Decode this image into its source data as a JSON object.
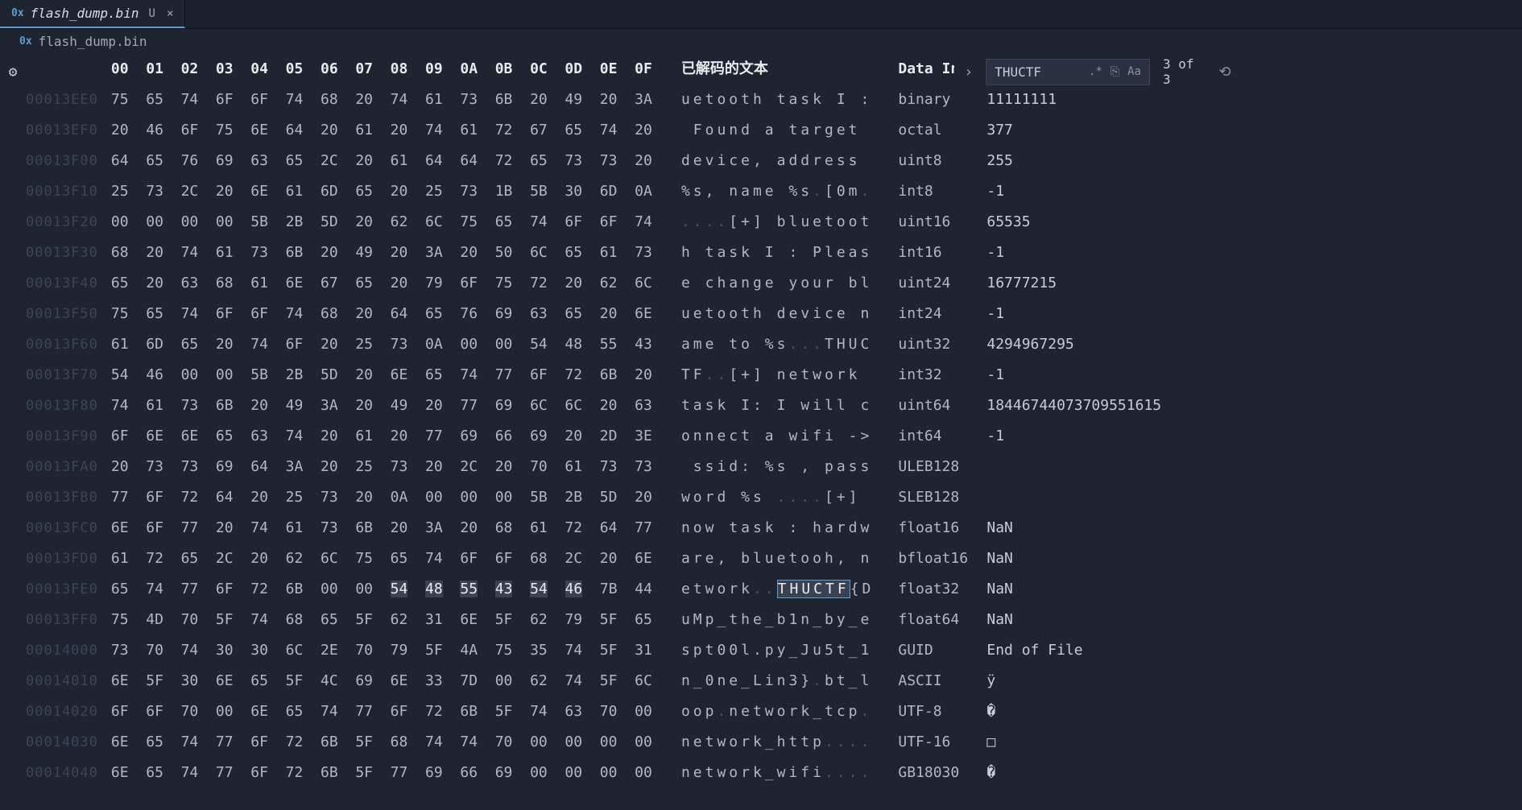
{
  "tab": {
    "icon": "0x",
    "name": "flash_dump.bin",
    "mod": "U",
    "close": "×"
  },
  "breadcrumb": {
    "icon": "0x",
    "name": "flash_dump.bin"
  },
  "gear_icon": "⚙",
  "hex": {
    "col_hdr": "00  01  02  03  04  05  06  07  08  09  0A  0B  0C  0D  0E  0F",
    "addrs": [
      "00013EE0",
      "00013EF0",
      "00013F00",
      "00013F10",
      "00013F20",
      "00013F30",
      "00013F40",
      "00013F50",
      "00013F60",
      "00013F70",
      "00013F80",
      "00013F90",
      "00013FA0",
      "00013FB0",
      "00013FC0",
      "00013FD0",
      "00013FE0",
      "00013FF0",
      "00014000",
      "00014010",
      "00014020",
      "00014030",
      "00014040"
    ],
    "rows": [
      "75  65  74  6F  6F  74  68  20  74  61  73  6B  20  49  20  3A",
      "20  46  6F  75  6E  64  20  61  20  74  61  72  67  65  74  20",
      "64  65  76  69  63  65  2C  20  61  64  64  72  65  73  73  20",
      "25  73  2C  20  6E  61  6D  65  20  25  73  1B  5B  30  6D  0A",
      "00  00  00  00  5B  2B  5D  20  62  6C  75  65  74  6F  6F  74",
      "68  20  74  61  73  6B  20  49  20  3A  20  50  6C  65  61  73",
      "65  20  63  68  61  6E  67  65  20  79  6F  75  72  20  62  6C",
      "75  65  74  6F  6F  74  68  20  64  65  76  69  63  65  20  6E",
      "61  6D  65  20  74  6F  20  25  73  0A  00  00  54  48  55  43",
      "54  46  00  00  5B  2B  5D  20  6E  65  74  77  6F  72  6B  20",
      "74  61  73  6B  20  49  3A  20  49  20  77  69  6C  6C  20  63",
      "6F  6E  6E  65  63  74  20  61  20  77  69  66  69  20  2D  3E",
      "20  73  73  69  64  3A  20  25  73  20  2C  20  70  61  73  73",
      "77  6F  72  64  20  25  73  20  0A  00  00  00  5B  2B  5D  20",
      "6E  6F  77  20  74  61  73  6B  20  3A  20  68  61  72  64  77",
      "61  72  65  2C  20  62  6C  75  65  74  6F  6F  68  2C  20  6E",
      "65  74  77  6F  72  6B  00  00  54  48  55  43  54  46  7B  44",
      "75  4D  70  5F  74  68  65  5F  62  31  6E  5F  62  79  5F  65",
      "73  70  74  30  30  6C  2E  70  79  5F  4A  75  35  74  5F  31",
      "6E  5F  30  6E  65  5F  4C  69  6E  33  7D  00  62  74  5F  6C",
      "6F  6F  70  00  6E  65  74  77  6F  72  6B  5F  74  63  70  00",
      "6E  65  74  77  6F  72  6B  5F  68  74  74  70  00  00  00  00",
      "6E  65  74  77  6F  72  6B  5F  77  69  66  69  00  00  00  00"
    ],
    "sel_row": 16,
    "sel_start": 8,
    "sel_end": 13
  },
  "dec": {
    "hdr": "已解码的文本",
    "rows": [
      {
        "pre": "uetooth task I :",
        "dim": ""
      },
      {
        "pre": " Found a target ",
        "dim": ""
      },
      {
        "pre": "device, address ",
        "dim": ""
      },
      {
        "pre": "%s, name %s",
        "dim": ".",
        "post": "[0m",
        "dim2": "."
      },
      {
        "dim": "....",
        "post": "[+] bluetoot"
      },
      {
        "pre": "h task I : Pleas",
        "dim": ""
      },
      {
        "pre": "e change your bl",
        "dim": ""
      },
      {
        "pre": "uetooth device n",
        "dim": ""
      },
      {
        "pre": "ame to %s",
        "dim": "...",
        "post": "THUC"
      },
      {
        "pre": "TF",
        "dim": "..",
        "post": "[+] network "
      },
      {
        "pre": "task I: I will c",
        "dim": ""
      },
      {
        "pre": "onnect a wifi ->",
        "dim": ""
      },
      {
        "pre": " ssid: %s , pass",
        "dim": ""
      },
      {
        "pre": "word %s ",
        "dim": "....",
        "post": "[+] "
      },
      {
        "pre": "now task : hardw",
        "dim": ""
      },
      {
        "pre": "are, bluetooh, n",
        "dim": ""
      },
      {
        "pre": "etwork",
        "dim": "..",
        "sel": "THUCTF",
        "post": "{D"
      },
      {
        "pre": "uMp_the_b1n_by_e",
        "dim": ""
      },
      {
        "pre": "spt00l.py_Ju5t_1",
        "dim": ""
      },
      {
        "pre": "n_0ne_Lin3}",
        "dim": ".",
        "post": "bt_l"
      },
      {
        "pre": "oop",
        "dim": ".",
        "post": "network_tcp",
        "dim2": "."
      },
      {
        "pre": "network_http",
        "dim": "...."
      },
      {
        "pre": "network_wifi",
        "dim": "...."
      }
    ]
  },
  "inspector": {
    "hdr": "Data In",
    "rows": [
      {
        "k": "binary",
        "v": "11111111"
      },
      {
        "k": "octal",
        "v": "377"
      },
      {
        "k": "uint8",
        "v": "255"
      },
      {
        "k": "int8",
        "v": "-1"
      },
      {
        "k": "uint16",
        "v": "65535"
      },
      {
        "k": "int16",
        "v": "-1"
      },
      {
        "k": "uint24",
        "v": "16777215"
      },
      {
        "k": "int24",
        "v": "-1"
      },
      {
        "k": "uint32",
        "v": "4294967295"
      },
      {
        "k": "int32",
        "v": "-1"
      },
      {
        "k": "uint64",
        "v": "18446744073709551615"
      },
      {
        "k": "int64",
        "v": "-1"
      },
      {
        "k": "ULEB128",
        "v": ""
      },
      {
        "k": "SLEB128",
        "v": ""
      },
      {
        "k": "float16",
        "v": "NaN"
      },
      {
        "k": "bfloat16",
        "v": "NaN"
      },
      {
        "k": "float32",
        "v": "NaN"
      },
      {
        "k": "float64",
        "v": "NaN"
      },
      {
        "k": "GUID",
        "v": "End of File"
      },
      {
        "k": "ASCII",
        "v": "ÿ"
      },
      {
        "k": "UTF-8",
        "v": "�"
      },
      {
        "k": "UTF-16",
        "v": "□"
      },
      {
        "k": "GB18030",
        "v": "�"
      }
    ]
  },
  "search": {
    "arrow": "›",
    "value": "THUCTF",
    "regex": ".*",
    "inbox": "⎘",
    "case": "Aa",
    "count": "3 of 3",
    "refresh": "⟲"
  }
}
